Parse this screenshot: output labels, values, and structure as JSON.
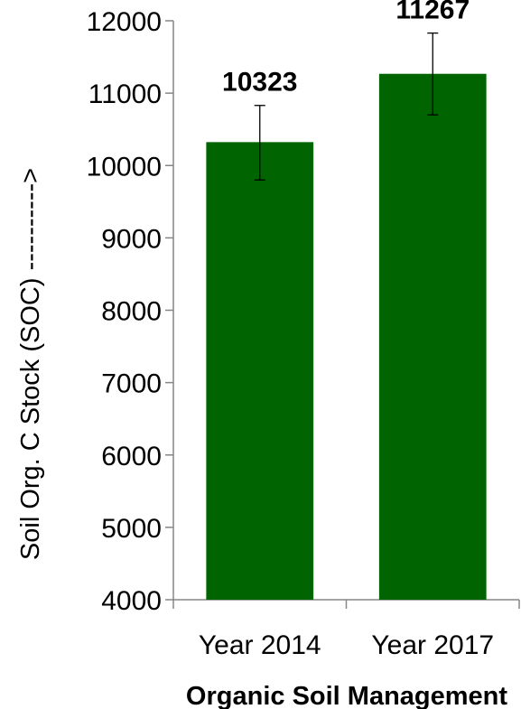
{
  "chart_data": {
    "type": "bar",
    "categories": [
      "Year 2014",
      "Year 2017"
    ],
    "values": [
      10323,
      11267
    ],
    "error_bars": [
      {
        "low": 9800,
        "high": 10830
      },
      {
        "low": 10700,
        "high": 11830
      }
    ],
    "data_labels": [
      "10323",
      "11267"
    ],
    "ylabel": "Soil Org. C  Stock (SOC) ---------->",
    "xlabel": "Organic Soil Management",
    "ylim": [
      4000,
      12000
    ],
    "yticks": [
      4000,
      5000,
      6000,
      7000,
      8000,
      9000,
      10000,
      11000,
      12000
    ],
    "ytick_labels": [
      "4000",
      "5000",
      "6000",
      "7000",
      "8000",
      "9000",
      "10000",
      "11000",
      "12000"
    ],
    "bar_color": "#006400",
    "grid": false,
    "legend": "none"
  }
}
